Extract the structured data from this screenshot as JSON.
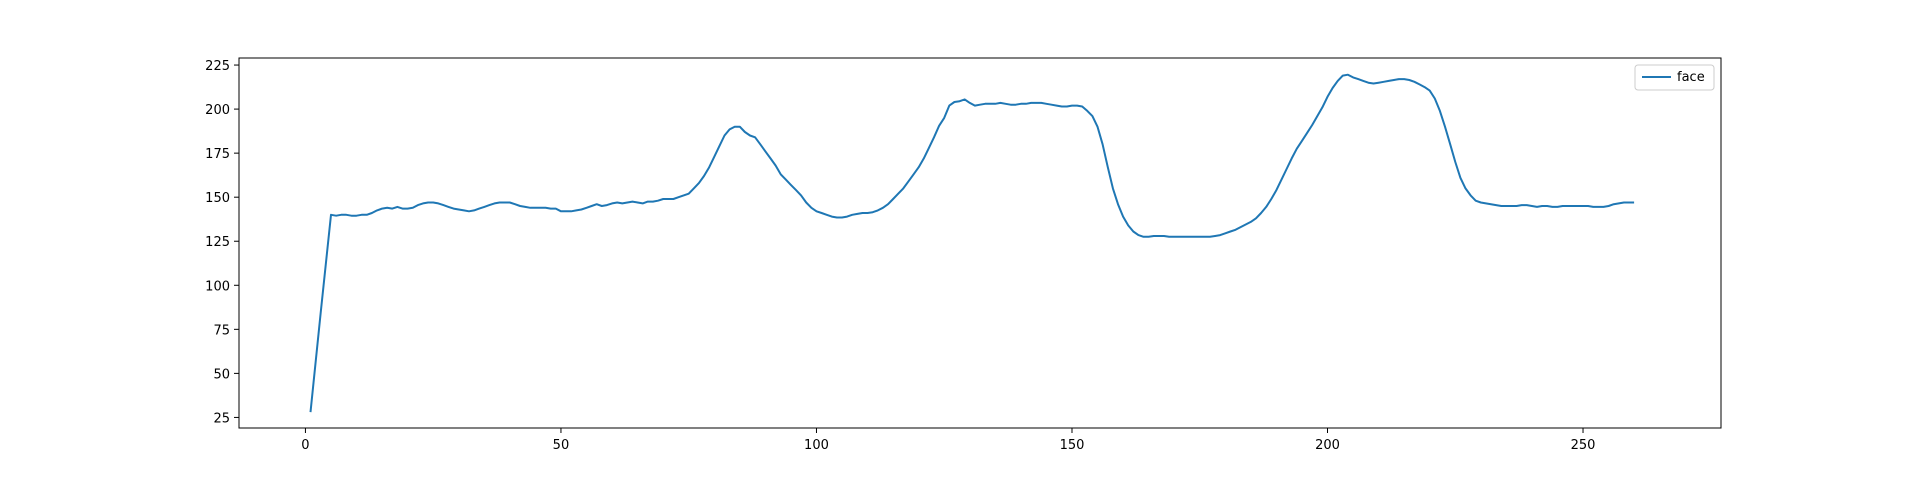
{
  "chart_data": {
    "type": "line",
    "title": "",
    "xlabel": "",
    "ylabel": "",
    "xlim": [
      -13,
      277
    ],
    "ylim": [
      19,
      229
    ],
    "grid": false,
    "legend_position": "top-right",
    "x_ticks": [
      0,
      50,
      100,
      150,
      200,
      250
    ],
    "y_ticks": [
      25,
      50,
      75,
      100,
      125,
      150,
      175,
      200,
      225
    ],
    "series": [
      {
        "name": "face",
        "color": "#1f77b4",
        "points": [
          [
            1,
            28
          ],
          [
            3,
            85
          ],
          [
            5,
            140
          ],
          [
            6,
            139.5
          ],
          [
            7,
            140
          ],
          [
            8,
            140
          ],
          [
            9,
            139.5
          ],
          [
            10,
            139.5
          ],
          [
            11,
            140
          ],
          [
            12,
            140
          ],
          [
            13,
            141
          ],
          [
            14,
            142.5
          ],
          [
            15,
            143.5
          ],
          [
            16,
            144
          ],
          [
            17,
            143.5
          ],
          [
            18,
            144.5
          ],
          [
            19,
            143.5
          ],
          [
            20,
            143.5
          ],
          [
            21,
            144
          ],
          [
            22,
            145.5
          ],
          [
            23,
            146.5
          ],
          [
            24,
            147
          ],
          [
            25,
            147
          ],
          [
            26,
            146.5
          ],
          [
            27,
            145.5
          ],
          [
            28,
            144.5
          ],
          [
            29,
            143.5
          ],
          [
            30,
            143
          ],
          [
            31,
            142.5
          ],
          [
            32,
            142
          ],
          [
            33,
            142.5
          ],
          [
            34,
            143.5
          ],
          [
            35,
            144.5
          ],
          [
            36,
            145.5
          ],
          [
            37,
            146.5
          ],
          [
            38,
            147
          ],
          [
            39,
            147
          ],
          [
            40,
            147
          ],
          [
            41,
            146
          ],
          [
            42,
            145
          ],
          [
            43,
            144.5
          ],
          [
            44,
            144
          ],
          [
            45,
            144
          ],
          [
            46,
            144
          ],
          [
            47,
            144
          ],
          [
            48,
            143.5
          ],
          [
            49,
            143.5
          ],
          [
            50,
            142
          ],
          [
            51,
            142
          ],
          [
            52,
            142
          ],
          [
            53,
            142.5
          ],
          [
            54,
            143
          ],
          [
            55,
            144
          ],
          [
            56,
            145
          ],
          [
            57,
            146
          ],
          [
            58,
            145
          ],
          [
            59,
            145.5
          ],
          [
            60,
            146.5
          ],
          [
            61,
            147
          ],
          [
            62,
            146.5
          ],
          [
            63,
            147
          ],
          [
            64,
            147.5
          ],
          [
            65,
            147
          ],
          [
            66,
            146.5
          ],
          [
            67,
            147.5
          ],
          [
            68,
            147.5
          ],
          [
            69,
            148
          ],
          [
            70,
            149
          ],
          [
            71,
            149
          ],
          [
            72,
            149
          ],
          [
            73,
            150
          ],
          [
            74,
            151
          ],
          [
            75,
            152
          ],
          [
            76,
            155
          ],
          [
            77,
            158
          ],
          [
            78,
            162
          ],
          [
            79,
            167
          ],
          [
            80,
            173
          ],
          [
            81,
            179
          ],
          [
            82,
            185
          ],
          [
            83,
            188.5
          ],
          [
            84,
            190
          ],
          [
            85,
            190
          ],
          [
            86,
            187
          ],
          [
            87,
            185
          ],
          [
            88,
            184
          ],
          [
            89,
            180
          ],
          [
            90,
            176
          ],
          [
            91,
            172
          ],
          [
            92,
            168
          ],
          [
            93,
            163
          ],
          [
            94,
            160
          ],
          [
            95,
            157
          ],
          [
            96,
            154
          ],
          [
            97,
            151
          ],
          [
            98,
            147
          ],
          [
            99,
            144
          ],
          [
            100,
            142
          ],
          [
            101,
            141
          ],
          [
            102,
            140
          ],
          [
            103,
            139
          ],
          [
            104,
            138.5
          ],
          [
            105,
            138.5
          ],
          [
            106,
            139
          ],
          [
            107,
            140
          ],
          [
            108,
            140.5
          ],
          [
            109,
            141
          ],
          [
            110,
            141
          ],
          [
            111,
            141.5
          ],
          [
            112,
            142.5
          ],
          [
            113,
            144
          ],
          [
            114,
            146
          ],
          [
            115,
            149
          ],
          [
            116,
            152
          ],
          [
            117,
            155
          ],
          [
            118,
            159
          ],
          [
            119,
            163
          ],
          [
            120,
            167
          ],
          [
            121,
            172
          ],
          [
            122,
            178
          ],
          [
            123,
            184
          ],
          [
            124,
            190.5
          ],
          [
            125,
            195
          ],
          [
            126,
            202
          ],
          [
            127,
            204
          ],
          [
            128,
            204.5
          ],
          [
            129,
            205.5
          ],
          [
            130,
            203.5
          ],
          [
            131,
            202
          ],
          [
            132,
            202.5
          ],
          [
            133,
            203
          ],
          [
            134,
            203
          ],
          [
            135,
            203
          ],
          [
            136,
            203.5
          ],
          [
            137,
            203
          ],
          [
            138,
            202.5
          ],
          [
            139,
            202.5
          ],
          [
            140,
            203
          ],
          [
            141,
            203
          ],
          [
            142,
            203.5
          ],
          [
            143,
            203.5
          ],
          [
            144,
            203.5
          ],
          [
            145,
            203
          ],
          [
            146,
            202.5
          ],
          [
            147,
            202
          ],
          [
            148,
            201.5
          ],
          [
            149,
            201.5
          ],
          [
            150,
            202
          ],
          [
            151,
            202
          ],
          [
            152,
            201.5
          ],
          [
            153,
            199
          ],
          [
            154,
            196
          ],
          [
            155,
            190
          ],
          [
            156,
            180
          ],
          [
            157,
            167
          ],
          [
            158,
            155
          ],
          [
            159,
            146
          ],
          [
            160,
            139
          ],
          [
            161,
            134
          ],
          [
            162,
            130.5
          ],
          [
            163,
            128.5
          ],
          [
            164,
            127.5
          ],
          [
            165,
            127.5
          ],
          [
            166,
            128
          ],
          [
            167,
            128
          ],
          [
            168,
            128
          ],
          [
            169,
            127.5
          ],
          [
            170,
            127.5
          ],
          [
            171,
            127.5
          ],
          [
            172,
            127.5
          ],
          [
            173,
            127.5
          ],
          [
            174,
            127.5
          ],
          [
            175,
            127.5
          ],
          [
            176,
            127.5
          ],
          [
            177,
            127.5
          ],
          [
            178,
            128
          ],
          [
            179,
            128.5
          ],
          [
            180,
            129.5
          ],
          [
            181,
            130.5
          ],
          [
            182,
            131.5
          ],
          [
            183,
            133
          ],
          [
            184,
            134.5
          ],
          [
            185,
            136
          ],
          [
            186,
            138
          ],
          [
            187,
            141
          ],
          [
            188,
            144.5
          ],
          [
            189,
            149
          ],
          [
            190,
            154
          ],
          [
            191,
            160
          ],
          [
            192,
            166
          ],
          [
            193,
            172
          ],
          [
            194,
            177.5
          ],
          [
            195,
            182
          ],
          [
            196,
            186.5
          ],
          [
            197,
            191
          ],
          [
            198,
            196
          ],
          [
            199,
            201
          ],
          [
            200,
            207
          ],
          [
            201,
            212
          ],
          [
            202,
            216
          ],
          [
            203,
            219
          ],
          [
            204,
            219.5
          ],
          [
            205,
            218
          ],
          [
            206,
            217
          ],
          [
            207,
            216
          ],
          [
            208,
            215
          ],
          [
            209,
            214.5
          ],
          [
            210,
            215
          ],
          [
            211,
            215.5
          ],
          [
            212,
            216
          ],
          [
            213,
            216.5
          ],
          [
            214,
            217
          ],
          [
            215,
            217
          ],
          [
            216,
            216.5
          ],
          [
            217,
            215.5
          ],
          [
            218,
            214
          ],
          [
            219,
            212.5
          ],
          [
            220,
            210.5
          ],
          [
            221,
            206
          ],
          [
            222,
            199
          ],
          [
            223,
            190
          ],
          [
            224,
            180
          ],
          [
            225,
            170
          ],
          [
            226,
            161
          ],
          [
            227,
            155
          ],
          [
            228,
            151
          ],
          [
            229,
            148
          ],
          [
            230,
            147
          ],
          [
            231,
            146.5
          ],
          [
            232,
            146
          ],
          [
            233,
            145.5
          ],
          [
            234,
            145
          ],
          [
            235,
            145
          ],
          [
            236,
            145
          ],
          [
            237,
            145
          ],
          [
            238,
            145.5
          ],
          [
            239,
            145.5
          ],
          [
            240,
            145
          ],
          [
            241,
            144.5
          ],
          [
            242,
            145
          ],
          [
            243,
            145
          ],
          [
            244,
            144.5
          ],
          [
            245,
            144.5
          ],
          [
            246,
            145
          ],
          [
            247,
            145
          ],
          [
            248,
            145
          ],
          [
            249,
            145
          ],
          [
            250,
            145
          ],
          [
            251,
            145
          ],
          [
            252,
            144.5
          ],
          [
            253,
            144.5
          ],
          [
            254,
            144.5
          ],
          [
            255,
            145
          ],
          [
            256,
            146
          ],
          [
            257,
            146.5
          ],
          [
            258,
            147
          ],
          [
            259,
            147
          ],
          [
            260,
            147
          ]
        ]
      }
    ]
  }
}
